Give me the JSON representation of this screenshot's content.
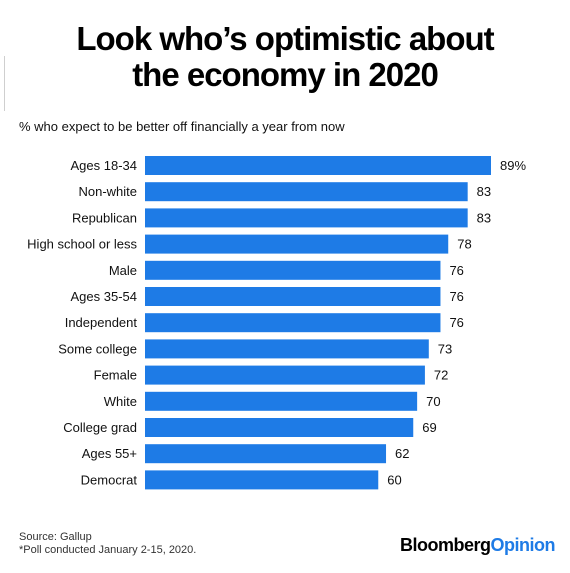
{
  "chart_data": {
    "type": "bar",
    "orientation": "horizontal",
    "title": [
      "Look who’s optimistic about",
      "the economy in 2020"
    ],
    "subtitle": "% who expect to be better off financially a year from now",
    "categories": [
      "Ages 18-34",
      "Non-white",
      "Republican",
      "High school or less",
      "Male",
      "Ages 35-54",
      "Independent",
      "Some college",
      "Female",
      "White",
      "College grad",
      "Ages 55+",
      "Democrat"
    ],
    "values": [
      89,
      83,
      83,
      78,
      76,
      76,
      76,
      73,
      72,
      70,
      69,
      62,
      60
    ],
    "value_labels": [
      "89%",
      "83",
      "83",
      "78",
      "76",
      "76",
      "76",
      "73",
      "72",
      "70",
      "69",
      "62",
      "60"
    ],
    "xlim": [
      0,
      89
    ],
    "grid": false,
    "legend": "none",
    "bar_color": "#1e7be6"
  },
  "source": {
    "line1": "Source: Gallup",
    "line2": "*Poll conducted January 2-15, 2020."
  },
  "logo": {
    "part1": "Bloomberg",
    "part2": "Opinion"
  }
}
